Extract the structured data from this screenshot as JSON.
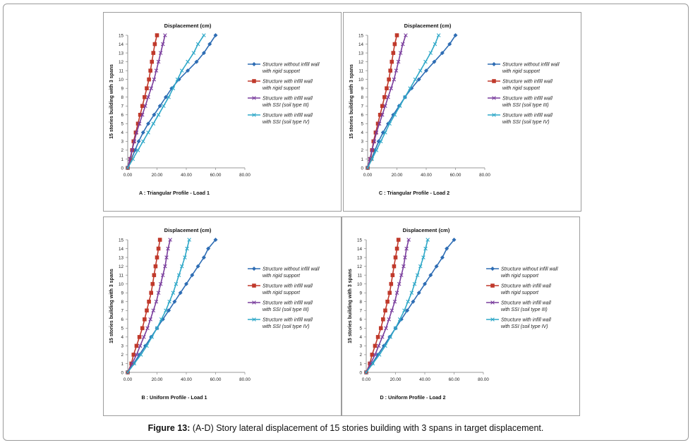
{
  "caption": {
    "bold": "Figure 13:",
    "text": " (A-D) Story lateral displacement of 15 stories building with 3 spans in target displacement."
  },
  "colors": {
    "s1": "#2E6DB4",
    "s2": "#C0392B",
    "s3": "#7A3E9D",
    "s4": "#2FA8C8"
  },
  "chart_data": [
    {
      "type": "line",
      "title": "Displacement (cm)",
      "subtitle": "A : Triangular Profile - Load 1",
      "ylabel": "15 stories building with 3 spans",
      "xlim": [
        0,
        80
      ],
      "ylim": [
        0,
        15
      ],
      "xticks": [
        "0.00",
        "20.00",
        "40.00",
        "60.00",
        "80.00"
      ],
      "yticks": [
        "0",
        "1",
        "2",
        "3",
        "4",
        "5",
        "6",
        "7",
        "8",
        "9",
        "10",
        "11",
        "12",
        "13",
        "14",
        "15"
      ],
      "y": [
        0,
        1,
        2,
        3,
        4,
        5,
        6,
        7,
        8,
        9,
        10,
        11,
        12,
        13,
        14,
        15
      ],
      "legend_position": "right",
      "series": [
        {
          "name": [
            "Structure without infill wall",
            "with rigid support"
          ],
          "marker": "diamond",
          "color_key": "s1",
          "x": [
            0,
            2.5,
            5,
            7.5,
            10.5,
            14,
            18,
            22,
            26,
            30,
            35,
            41,
            47,
            52,
            56,
            60
          ]
        },
        {
          "name": [
            "Structure with infill wall",
            "with rigid support"
          ],
          "marker": "square",
          "color_key": "s2",
          "x": [
            0,
            2,
            3,
            4,
            5.5,
            7,
            8.5,
            10,
            11.5,
            13,
            14.5,
            15.5,
            16.5,
            17.5,
            18.5,
            20
          ]
        },
        {
          "name": [
            "Structure with infill wall",
            "with SSI (soil type III)"
          ],
          "marker": "x",
          "color_key": "s3",
          "x": [
            0,
            1.5,
            3,
            4.5,
            6,
            8,
            10,
            12,
            14,
            16,
            18,
            19.5,
            21,
            22.5,
            24,
            25.5
          ]
        },
        {
          "name": [
            "Structure with infill wall",
            "with SSI (soil type IV)"
          ],
          "marker": "x",
          "color_key": "s4",
          "x": [
            0,
            3.5,
            7,
            10.5,
            14,
            17.5,
            21,
            24.5,
            28,
            31,
            34,
            37,
            41,
            45,
            48,
            52
          ]
        }
      ]
    },
    {
      "type": "line",
      "title": "Displacement (cm)",
      "subtitle": "C : Triangular Profile - Load 2",
      "ylabel": "15 stories building with 3 spans",
      "xlim": [
        0,
        80
      ],
      "ylim": [
        0,
        15
      ],
      "xticks": [
        "0.00",
        "20.00",
        "40.00",
        "60.00",
        "80.00"
      ],
      "yticks": [
        "0",
        "1",
        "2",
        "3",
        "4",
        "5",
        "6",
        "7",
        "8",
        "9",
        "10",
        "11",
        "12",
        "13",
        "14",
        "15"
      ],
      "y": [
        0,
        1,
        2,
        3,
        4,
        5,
        6,
        7,
        8,
        9,
        10,
        11,
        12,
        13,
        14,
        15
      ],
      "legend_position": "right",
      "series": [
        {
          "name": [
            "Structure without infill wall",
            "with rigid support"
          ],
          "marker": "diamond",
          "color_key": "s1",
          "x": [
            0,
            2.5,
            5,
            7.5,
            10.5,
            14,
            17.5,
            21.5,
            25.5,
            30,
            35,
            40,
            45.5,
            51,
            56,
            60
          ]
        },
        {
          "name": [
            "Structure with infill wall",
            "with rigid support"
          ],
          "marker": "square",
          "color_key": "s2",
          "x": [
            0,
            2,
            3,
            4,
            5.5,
            7,
            8.5,
            10,
            11.5,
            13,
            14.5,
            15.5,
            16.5,
            17.5,
            18.5,
            20
          ]
        },
        {
          "name": [
            "Structure with infill wall",
            "with SSI (soil type III)"
          ],
          "marker": "x",
          "color_key": "s3",
          "x": [
            0,
            1.5,
            3,
            4.5,
            6,
            8,
            10,
            12,
            14,
            16,
            18,
            19.5,
            21,
            22.5,
            24,
            26
          ]
        },
        {
          "name": [
            "Structure with infill wall",
            "with SSI (soil type IV)"
          ],
          "marker": "x",
          "color_key": "s4",
          "x": [
            0,
            3,
            6,
            9,
            12,
            15,
            18.5,
            22,
            25.5,
            29,
            32.5,
            36,
            39.5,
            43,
            46,
            48.5
          ]
        }
      ]
    },
    {
      "type": "line",
      "title": "Displacement (cm)",
      "subtitle": "B : Uniform Profile - Load 1",
      "ylabel": "15 stories building with 3 spans",
      "xlim": [
        0,
        80
      ],
      "ylim": [
        0,
        15
      ],
      "xticks": [
        "0.00",
        "20.00",
        "40.00",
        "60.00",
        "80.00"
      ],
      "yticks": [
        "0",
        "1",
        "2",
        "3",
        "4",
        "5",
        "6",
        "7",
        "8",
        "9",
        "10",
        "11",
        "12",
        "13",
        "14",
        "15"
      ],
      "y": [
        0,
        1,
        2,
        3,
        4,
        5,
        6,
        7,
        8,
        9,
        10,
        11,
        12,
        13,
        14,
        15
      ],
      "legend_position": "right",
      "series": [
        {
          "name": [
            "Structure without infill wall",
            "with rigid support"
          ],
          "marker": "diamond",
          "color_key": "s1",
          "x": [
            0,
            4,
            8,
            12,
            16,
            20,
            24,
            28,
            32,
            36,
            40,
            44,
            48,
            52,
            55,
            60
          ]
        },
        {
          "name": [
            "Structure with infill wall",
            "with rigid support"
          ],
          "marker": "square",
          "color_key": "s2",
          "x": [
            0,
            2.5,
            4,
            6,
            8,
            10,
            11.5,
            13,
            14.5,
            16,
            17,
            18,
            19,
            20,
            21,
            22
          ]
        },
        {
          "name": [
            "Structure with infill wall",
            "with SSI (soil type III)"
          ],
          "marker": "x",
          "color_key": "s3",
          "x": [
            0,
            3,
            6,
            8.5,
            11,
            13.5,
            15.5,
            17.5,
            19.5,
            21,
            22.5,
            24,
            25.5,
            26.5,
            27.5,
            29
          ]
        },
        {
          "name": [
            "Structure with infill wall",
            "with SSI (soil type IV)"
          ],
          "marker": "x",
          "color_key": "s4",
          "x": [
            0,
            4.5,
            9,
            13,
            16.5,
            20,
            23,
            26,
            28.5,
            31,
            33,
            35,
            37,
            39,
            40.5,
            42
          ]
        }
      ]
    },
    {
      "type": "line",
      "title": "Displacement (cm)",
      "subtitle": "D : Uniform Profile - Load 2",
      "ylabel": "15 stories building with 3 spans",
      "xlim": [
        0,
        80
      ],
      "ylim": [
        0,
        15
      ],
      "xticks": [
        "0.00",
        "20.00",
        "40.00",
        "60.00",
        "80.00"
      ],
      "yticks": [
        "0",
        "1",
        "2",
        "3",
        "4",
        "5",
        "6",
        "7",
        "8",
        "9",
        "10",
        "11",
        "12",
        "13",
        "14",
        "15"
      ],
      "y": [
        0,
        1,
        2,
        3,
        4,
        5,
        6,
        7,
        8,
        9,
        10,
        11,
        12,
        13,
        14,
        15
      ],
      "legend_position": "right",
      "series": [
        {
          "name": [
            "Structure without infill wall",
            "with rigid support"
          ],
          "marker": "diamond",
          "color_key": "s1",
          "x": [
            0,
            4,
            8,
            12,
            16,
            20,
            24,
            28,
            32,
            36,
            40,
            44,
            48,
            52,
            55,
            60
          ]
        },
        {
          "name": [
            "Structure with infill wall",
            "with rigid support"
          ],
          "marker": "square",
          "color_key": "s2",
          "x": [
            0,
            2.5,
            4,
            6,
            8,
            10,
            11.5,
            13,
            14.5,
            16,
            17,
            18,
            19,
            20,
            21,
            22
          ]
        },
        {
          "name": [
            "Structure with infill wall",
            "with SSI (soil type III)"
          ],
          "marker": "x",
          "color_key": "s3",
          "x": [
            0,
            3,
            6,
            8.5,
            11,
            13.5,
            15.5,
            17.5,
            19.5,
            21,
            22.5,
            24,
            25.5,
            26.5,
            27.5,
            29
          ]
        },
        {
          "name": [
            "Structure with infill wall",
            "with SSI (soil type IV)"
          ],
          "marker": "x",
          "color_key": "s4",
          "x": [
            0,
            4.5,
            9,
            13,
            16.5,
            20,
            23,
            26,
            28.5,
            31,
            33,
            35,
            37,
            39,
            40.5,
            42
          ]
        }
      ]
    }
  ]
}
